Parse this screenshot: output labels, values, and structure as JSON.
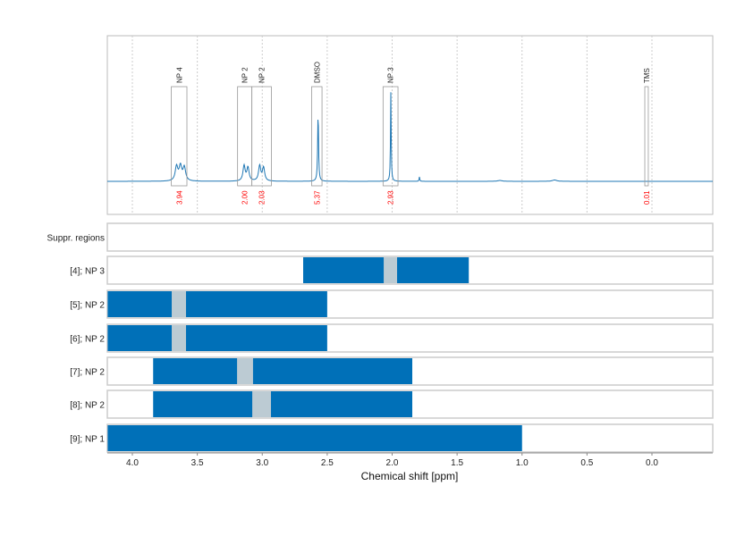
{
  "chart_data": {
    "type": "line",
    "xlabel": "Chemical shift [ppm]",
    "xlim": [
      4.19,
      -0.47
    ],
    "x_ticks": [
      "4.0",
      "3.5",
      "3.0",
      "2.5",
      "2.0",
      "1.5",
      "1.0",
      "0.5",
      "0.0"
    ],
    "x_tick_values": [
      4.0,
      3.5,
      3.0,
      2.5,
      2.0,
      1.5,
      1.0,
      0.5,
      0.0
    ],
    "grid": "vertical dotted",
    "spectrum": {
      "color": "#1f77b4",
      "peaks": [
        {
          "ppm": 3.66,
          "height": 0.16,
          "width": 0.012
        },
        {
          "ppm": 3.63,
          "height": 0.16,
          "width": 0.012
        },
        {
          "ppm": 3.6,
          "height": 0.15,
          "width": 0.012
        },
        {
          "ppm": 3.14,
          "height": 0.17,
          "width": 0.01
        },
        {
          "ppm": 3.11,
          "height": 0.15,
          "width": 0.01
        },
        {
          "ppm": 3.02,
          "height": 0.17,
          "width": 0.01
        },
        {
          "ppm": 2.99,
          "height": 0.15,
          "width": 0.01
        },
        {
          "ppm": 2.57,
          "height": 0.77,
          "width": 0.004
        },
        {
          "ppm": 2.01,
          "height": 1.0,
          "width": 0.003
        },
        {
          "ppm": 1.79,
          "height": 0.05,
          "width": 0.003
        },
        {
          "ppm": 1.17,
          "height": 0.01,
          "width": 0.02
        },
        {
          "ppm": 0.75,
          "height": 0.015,
          "width": 0.02
        }
      ]
    },
    "annotations": [
      {
        "label": "NP 4",
        "from": 3.7,
        "to": 3.58,
        "integral": "3.94"
      },
      {
        "label": "NP 2",
        "from": 3.19,
        "to": 3.08,
        "integral": "2.00"
      },
      {
        "label": "NP 2",
        "from": 3.08,
        "to": 2.93,
        "integral": "2.03"
      },
      {
        "label": "DMSO",
        "from": 2.62,
        "to": 2.54,
        "integral": "5.37"
      },
      {
        "label": "NP 3",
        "from": 2.07,
        "to": 1.955,
        "integral": "2.93"
      },
      {
        "label": "TMS",
        "from": 0.055,
        "to": 0.028,
        "integral": "0.01"
      }
    ],
    "integral_color": "#ff0000",
    "rows": [
      {
        "label": "Suppr. regions",
        "bars": []
      },
      {
        "label": "[4]; NP 3",
        "bars": [
          [
            2.685,
            1.41
          ]
        ],
        "gaps": [
          [
            2.065,
            1.962
          ]
        ]
      },
      {
        "label": "[5]; NP 2",
        "bars": [
          [
            4.19,
            2.5
          ]
        ],
        "gaps": [
          [
            3.697,
            3.587
          ]
        ]
      },
      {
        "label": "[6]; NP 2",
        "bars": [
          [
            4.19,
            2.5
          ]
        ],
        "gaps": [
          [
            3.697,
            3.587
          ]
        ]
      },
      {
        "label": "[7]; NP 2",
        "bars": [
          [
            3.84,
            1.845
          ]
        ],
        "gaps": [
          [
            3.194,
            3.071
          ]
        ]
      },
      {
        "label": "[8]; NP 2",
        "bars": [
          [
            3.84,
            1.845
          ]
        ],
        "gaps": [
          [
            3.077,
            2.933
          ]
        ]
      },
      {
        "label": "[9]; NP 1",
        "bars": [
          [
            4.19,
            1.0
          ]
        ],
        "gaps": []
      }
    ],
    "bar_color": "#0070b8",
    "gap_color": "#bccbd3"
  }
}
